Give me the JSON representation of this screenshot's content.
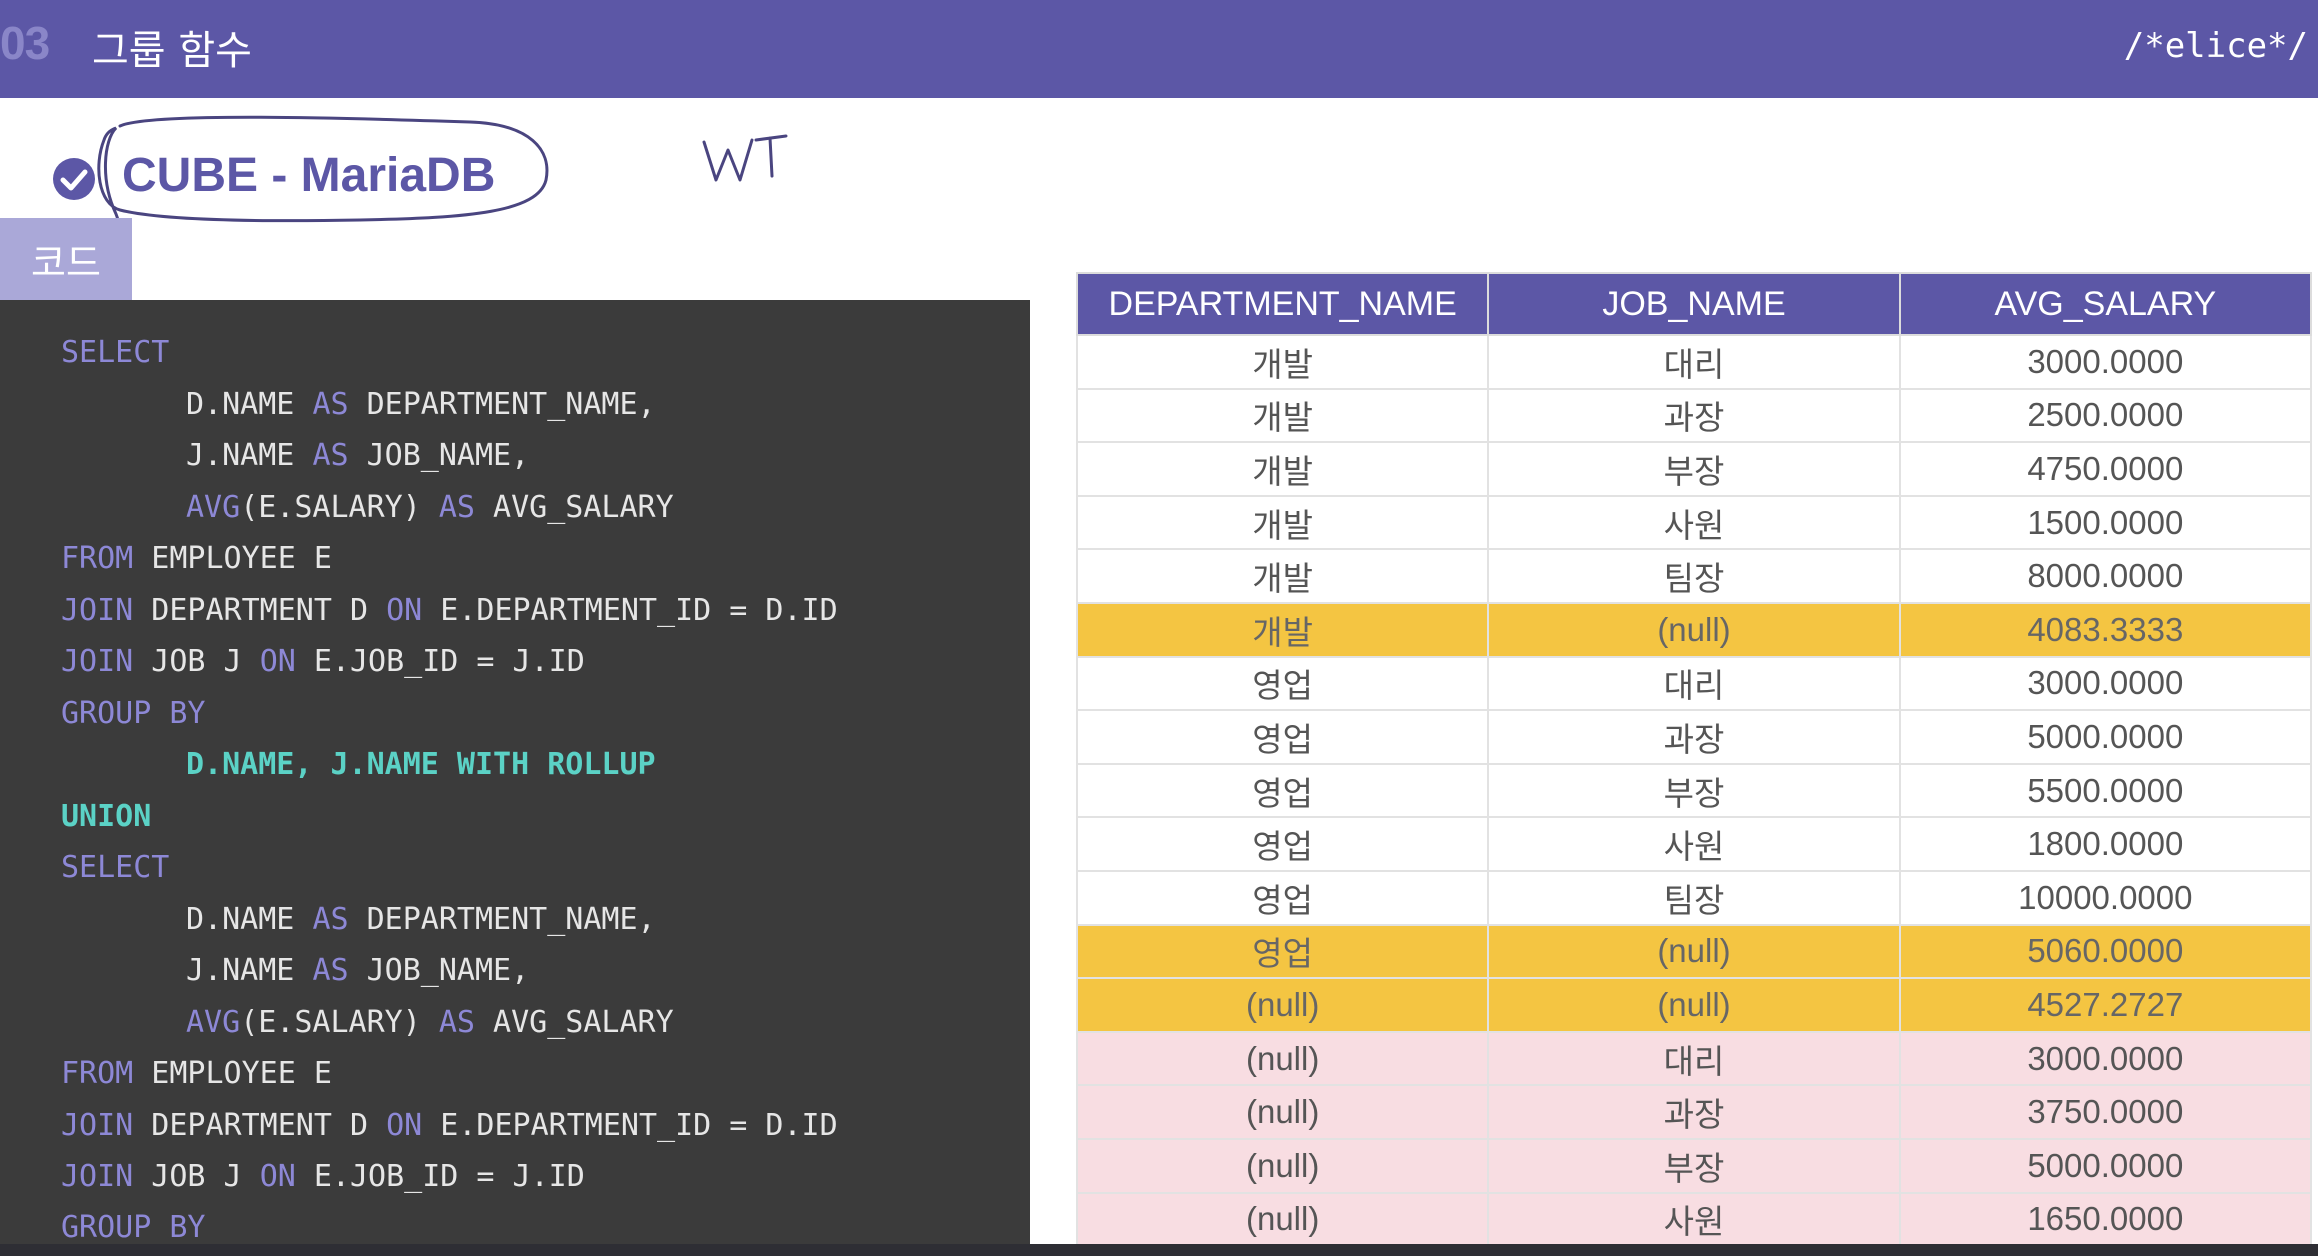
{
  "header": {
    "section_number": "03",
    "title": "그룹 함수",
    "brand": "/*elice*/"
  },
  "section": {
    "title": "CUBE - MariaDB",
    "check_icon": "check-circle-icon"
  },
  "annotation": {
    "handwritten_text": "WT"
  },
  "code_tab": {
    "label": "코드"
  },
  "code": {
    "lines": [
      {
        "indent": "",
        "tokens": [
          {
            "t": "SELECT",
            "c": "kw"
          }
        ]
      },
      {
        "indent": "       ",
        "tokens": [
          {
            "t": "D.NAME ",
            "c": ""
          },
          {
            "t": "AS",
            "c": "kw"
          },
          {
            "t": " DEPARTMENT_NAME,",
            "c": ""
          }
        ]
      },
      {
        "indent": "       ",
        "tokens": [
          {
            "t": "J.NAME ",
            "c": ""
          },
          {
            "t": "AS",
            "c": "kw"
          },
          {
            "t": " JOB_NAME,",
            "c": ""
          }
        ]
      },
      {
        "indent": "       ",
        "tokens": [
          {
            "t": "AVG",
            "c": "kw"
          },
          {
            "t": "(E.SALARY) ",
            "c": ""
          },
          {
            "t": "AS",
            "c": "kw"
          },
          {
            "t": " AVG_SALARY",
            "c": ""
          }
        ]
      },
      {
        "indent": "",
        "tokens": [
          {
            "t": "FROM",
            "c": "kw"
          },
          {
            "t": " EMPLOYEE E",
            "c": ""
          }
        ]
      },
      {
        "indent": "",
        "tokens": [
          {
            "t": "JOIN",
            "c": "kw"
          },
          {
            "t": " DEPARTMENT D ",
            "c": ""
          },
          {
            "t": "ON",
            "c": "kw"
          },
          {
            "t": " E.DEPARTMENT_ID = D.ID",
            "c": ""
          }
        ]
      },
      {
        "indent": "",
        "tokens": [
          {
            "t": "JOIN",
            "c": "kw"
          },
          {
            "t": " JOB J ",
            "c": ""
          },
          {
            "t": "ON",
            "c": "kw"
          },
          {
            "t": " E.JOB_ID = J.ID",
            "c": ""
          }
        ]
      },
      {
        "indent": "",
        "tokens": [
          {
            "t": "GROUP BY",
            "c": "kw"
          }
        ]
      },
      {
        "indent": "       ",
        "tokens": [
          {
            "t": "D.NAME, J.NAME WITH ROLLUP",
            "c": "hl"
          }
        ]
      },
      {
        "indent": "",
        "tokens": [
          {
            "t": "UNION",
            "c": "union"
          }
        ]
      },
      {
        "indent": "",
        "tokens": [
          {
            "t": "SELECT",
            "c": "kw"
          }
        ]
      },
      {
        "indent": "       ",
        "tokens": [
          {
            "t": "D.NAME ",
            "c": ""
          },
          {
            "t": "AS",
            "c": "kw"
          },
          {
            "t": " DEPARTMENT_NAME,",
            "c": ""
          }
        ]
      },
      {
        "indent": "       ",
        "tokens": [
          {
            "t": "J.NAME ",
            "c": ""
          },
          {
            "t": "AS",
            "c": "kw"
          },
          {
            "t": " JOB_NAME,",
            "c": ""
          }
        ]
      },
      {
        "indent": "       ",
        "tokens": [
          {
            "t": "AVG",
            "c": "kw"
          },
          {
            "t": "(E.SALARY) ",
            "c": ""
          },
          {
            "t": "AS",
            "c": "kw"
          },
          {
            "t": " AVG_SALARY",
            "c": ""
          }
        ]
      },
      {
        "indent": "",
        "tokens": [
          {
            "t": "FROM",
            "c": "kw"
          },
          {
            "t": " EMPLOYEE E",
            "c": ""
          }
        ]
      },
      {
        "indent": "",
        "tokens": [
          {
            "t": "JOIN",
            "c": "kw"
          },
          {
            "t": " DEPARTMENT D ",
            "c": ""
          },
          {
            "t": "ON",
            "c": "kw"
          },
          {
            "t": " E.DEPARTMENT_ID = D.ID",
            "c": ""
          }
        ]
      },
      {
        "indent": "",
        "tokens": [
          {
            "t": "JOIN",
            "c": "kw"
          },
          {
            "t": " JOB J ",
            "c": ""
          },
          {
            "t": "ON",
            "c": "kw"
          },
          {
            "t": " E.JOB_ID = J.ID",
            "c": ""
          }
        ]
      },
      {
        "indent": "",
        "tokens": [
          {
            "t": "GROUP BY",
            "c": "kw"
          }
        ]
      }
    ]
  },
  "table": {
    "columns": [
      "DEPARTMENT_NAME",
      "JOB_NAME",
      "AVG_SALARY"
    ],
    "rows": [
      {
        "cells": [
          "개발",
          "대리",
          "3000.0000"
        ],
        "style": "normal"
      },
      {
        "cells": [
          "개발",
          "과장",
          "2500.0000"
        ],
        "style": "normal"
      },
      {
        "cells": [
          "개발",
          "부장",
          "4750.0000"
        ],
        "style": "normal"
      },
      {
        "cells": [
          "개발",
          "사원",
          "1500.0000"
        ],
        "style": "normal"
      },
      {
        "cells": [
          "개발",
          "팀장",
          "8000.0000"
        ],
        "style": "normal"
      },
      {
        "cells": [
          "개발",
          "(null)",
          "4083.3333"
        ],
        "style": "subtotal"
      },
      {
        "cells": [
          "영업",
          "대리",
          "3000.0000"
        ],
        "style": "normal"
      },
      {
        "cells": [
          "영업",
          "과장",
          "5000.0000"
        ],
        "style": "normal"
      },
      {
        "cells": [
          "영업",
          "부장",
          "5500.0000"
        ],
        "style": "normal"
      },
      {
        "cells": [
          "영업",
          "사원",
          "1800.0000"
        ],
        "style": "normal"
      },
      {
        "cells": [
          "영업",
          "팀장",
          "10000.0000"
        ],
        "style": "normal"
      },
      {
        "cells": [
          "영업",
          "(null)",
          "5060.0000"
        ],
        "style": "subtotal"
      },
      {
        "cells": [
          "(null)",
          "(null)",
          "4527.2727"
        ],
        "style": "subtotal"
      },
      {
        "cells": [
          "(null)",
          "대리",
          "3000.0000"
        ],
        "style": "cube"
      },
      {
        "cells": [
          "(null)",
          "과장",
          "3750.0000"
        ],
        "style": "cube"
      },
      {
        "cells": [
          "(null)",
          "부장",
          "5000.0000"
        ],
        "style": "cube"
      },
      {
        "cells": [
          "(null)",
          "사원",
          "1650.0000"
        ],
        "style": "cube"
      }
    ]
  },
  "colors": {
    "header_bg": "#5c57a6",
    "subtotal_row": "#f4c542",
    "cube_row": "#f8dde2",
    "code_bg": "#3b3b3b",
    "keyword": "#8d88d6",
    "highlight": "#5bd2c6"
  }
}
